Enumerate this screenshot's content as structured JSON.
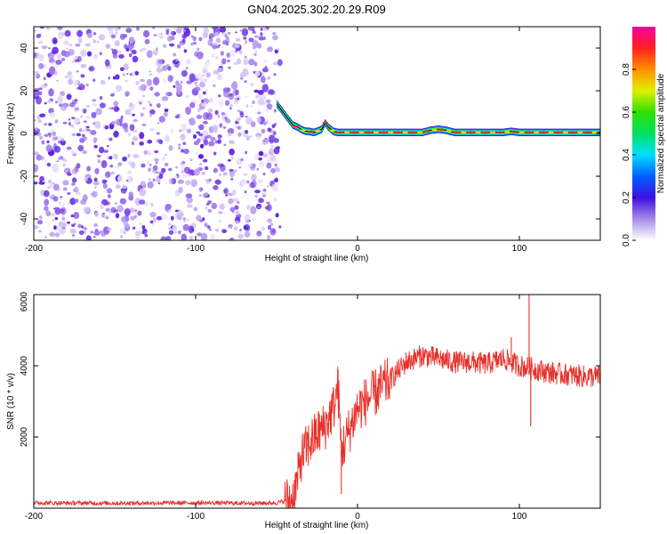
{
  "title": "GN04.2025.302.20.29.R09",
  "chart_data": [
    {
      "type": "heatmap",
      "name": "spectrogram",
      "xlabel": "Height of straight line (km)",
      "ylabel": "Frequency (Hz)",
      "xlim": [
        -200,
        150
      ],
      "ylim": [
        -50,
        50
      ],
      "xticks": [
        -200,
        -100,
        0,
        100
      ],
      "yticks": [
        -40,
        -20,
        0,
        20,
        40
      ],
      "noise_region_x": [
        -200,
        -50
      ],
      "ridge": {
        "x": [
          -50,
          -48,
          -45,
          -42,
          -40,
          -37,
          -35,
          -32,
          -30,
          -27,
          -25,
          -22,
          -20,
          -18,
          -15,
          -12,
          -10,
          -5,
          0,
          10,
          20,
          30,
          40,
          45,
          50,
          55,
          60,
          65,
          70,
          80,
          90,
          95,
          100,
          110,
          120,
          130,
          140,
          150
        ],
        "y": [
          14,
          12,
          9,
          6,
          4,
          3,
          2,
          1,
          1,
          0.5,
          1,
          2,
          5,
          3,
          1,
          0.5,
          0.5,
          0.5,
          0.5,
          0.5,
          0.5,
          0.5,
          0.5,
          1.5,
          2,
          1.5,
          0.5,
          0.5,
          0.5,
          0.5,
          0.5,
          1,
          0.5,
          0.5,
          0.5,
          0.5,
          0.5,
          0.5
        ]
      },
      "colorbar": {
        "label": "Normalized spectral amplitude",
        "range": [
          0,
          1
        ],
        "ticks": [
          0.0,
          0.2,
          0.4,
          0.6,
          0.8
        ]
      }
    },
    {
      "type": "line",
      "name": "snr",
      "xlabel": "Height of straight line (km)",
      "ylabel": "SNR (10 * v/v)",
      "xlim": [
        -200,
        150
      ],
      "ylim": [
        0,
        6000
      ],
      "xticks": [
        -200,
        -100,
        0,
        100
      ],
      "yticks": [
        2000,
        4000,
        6000
      ],
      "line_color": "#e8302a",
      "series": [
        {
          "name": "SNR",
          "x": [
            -200,
            -150,
            -100,
            -60,
            -50,
            -40,
            -37,
            -35,
            -30,
            -25,
            -20,
            -15,
            -12,
            -10,
            -5,
            0,
            10,
            20,
            30,
            40,
            50,
            60,
            70,
            80,
            90,
            100,
            110,
            120,
            130,
            140,
            150
          ],
          "y": [
            150,
            140,
            150,
            140,
            150,
            250,
            800,
            1400,
            1800,
            2100,
            2300,
            2800,
            3400,
            1600,
            2200,
            2800,
            3200,
            3600,
            4100,
            4300,
            4200,
            4100,
            4100,
            4050,
            4200,
            4000,
            3900,
            3800,
            3750,
            3700,
            3700
          ]
        }
      ],
      "spikes": [
        {
          "x": -12,
          "y": 3900
        },
        {
          "x": -10,
          "y": 400
        },
        {
          "x": 95,
          "y": 4800
        },
        {
          "x": 106,
          "y": 6000
        },
        {
          "x": 107,
          "y": 2300
        }
      ]
    }
  ]
}
